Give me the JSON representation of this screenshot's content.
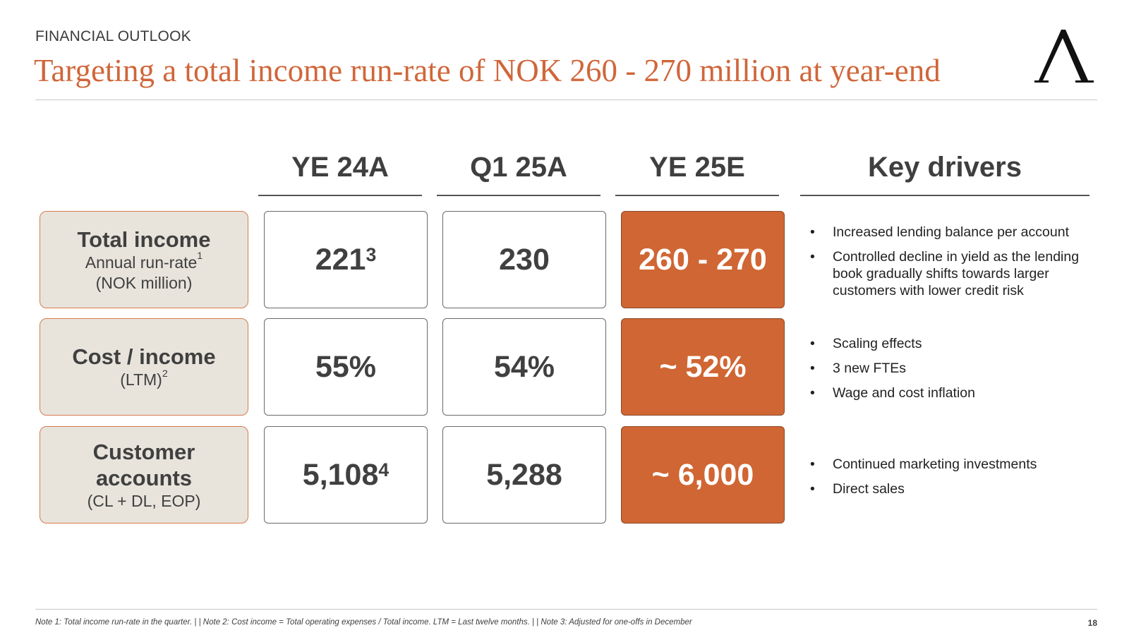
{
  "header": {
    "section": "FINANCIAL OUTLOOK",
    "title": "Targeting a total income run-rate of NOK 260 - 270 million at year-end",
    "logo": "Λ"
  },
  "columns": {
    "ye24a": "YE 24A",
    "q125a": "Q1 25A",
    "ye25e": "YE 25E",
    "drivers": "Key drivers"
  },
  "rows": [
    {
      "label": "Total income",
      "sub1": "Annual run-rate",
      "sub1_sup": "1",
      "sub2": "(NOK million)",
      "ye24a": "221",
      "ye24a_sup": "3",
      "q125a": "230",
      "ye25e": "260 - 270",
      "drivers": [
        "Increased lending balance per account",
        "Controlled decline in yield as the lending book gradually shifts towards larger customers with lower credit risk"
      ]
    },
    {
      "label": "Cost / income",
      "sub1": "(LTM)",
      "sub1_sup": "2",
      "ye24a": "55%",
      "q125a": "54%",
      "ye25e": "~ 52%",
      "drivers": [
        "Scaling effects",
        "3 new FTEs",
        "Wage and cost inflation"
      ]
    },
    {
      "label_line1": "Customer",
      "label_line2": "accounts",
      "sub1": "(CL + DL, EOP)",
      "ye24a": "5,108",
      "ye24a_sup": "4",
      "q125a": "5,288",
      "ye25e": "~ 6,000",
      "drivers": [
        "Continued marketing investments",
        "Direct sales"
      ]
    }
  ],
  "bullet": "•",
  "footer": {
    "notes": "Note 1: Total income run-rate in the quarter.   | |   Note 2: Cost income = Total operating expenses / Total income. LTM = Last twelve months.   | |   Note 3: Adjusted for one-offs in December",
    "page": "18"
  },
  "colors": {
    "accent": "#d06633",
    "title": "#d0663a",
    "label_bg": "#e8e4dc"
  }
}
